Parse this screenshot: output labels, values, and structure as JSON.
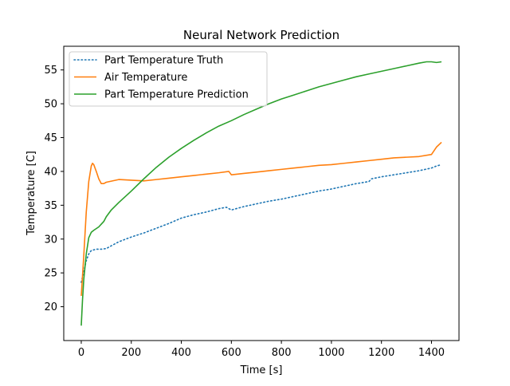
{
  "chart_data": {
    "type": "line",
    "title": "Neural Network Prediction",
    "xlabel": "Time [s]",
    "ylabel": "Temperature [C]",
    "xlim": [
      -70,
      1510
    ],
    "ylim": [
      15,
      58.5
    ],
    "xticks": [
      0,
      200,
      400,
      600,
      800,
      1000,
      1200,
      1400
    ],
    "yticks": [
      20,
      25,
      30,
      35,
      40,
      45,
      50,
      55
    ],
    "grid": false,
    "legend_position": "upper-left",
    "series": [
      {
        "name": "Part Temperature Truth",
        "color": "#1f77b4",
        "style": "dotted",
        "x": [
          0,
          10,
          20,
          30,
          40,
          60,
          80,
          100,
          150,
          200,
          250,
          300,
          350,
          400,
          450,
          500,
          550,
          580,
          600,
          650,
          700,
          750,
          800,
          850,
          900,
          950,
          1000,
          1050,
          1100,
          1150,
          1160,
          1200,
          1250,
          1300,
          1350,
          1400,
          1420,
          1440
        ],
        "y": [
          23.6,
          25.2,
          26.8,
          27.8,
          28.3,
          28.5,
          28.5,
          28.6,
          29.6,
          30.3,
          30.9,
          31.6,
          32.3,
          33.1,
          33.6,
          34.0,
          34.5,
          34.7,
          34.3,
          34.8,
          35.2,
          35.6,
          35.9,
          36.3,
          36.7,
          37.1,
          37.4,
          37.8,
          38.2,
          38.5,
          38.9,
          39.2,
          39.5,
          39.8,
          40.1,
          40.5,
          40.8,
          41.0
        ]
      },
      {
        "name": "Air Temperature",
        "color": "#ff7f0e",
        "style": "solid",
        "x": [
          0,
          10,
          20,
          30,
          40,
          45,
          50,
          60,
          70,
          80,
          90,
          100,
          150,
          200,
          250,
          300,
          350,
          400,
          450,
          500,
          550,
          590,
          600,
          650,
          700,
          750,
          800,
          850,
          900,
          950,
          1000,
          1050,
          1100,
          1150,
          1200,
          1250,
          1300,
          1350,
          1400,
          1420,
          1440
        ],
        "y": [
          21.6,
          27.5,
          34.0,
          38.5,
          40.8,
          41.2,
          41.0,
          40.0,
          38.9,
          38.2,
          38.2,
          38.4,
          38.8,
          38.7,
          38.6,
          38.8,
          39.0,
          39.2,
          39.4,
          39.6,
          39.8,
          40.0,
          39.5,
          39.7,
          39.9,
          40.1,
          40.3,
          40.5,
          40.7,
          40.9,
          41.0,
          41.2,
          41.4,
          41.6,
          41.8,
          42.0,
          42.1,
          42.2,
          42.5,
          43.6,
          44.3
        ]
      },
      {
        "name": "Part Temperature Prediction",
        "color": "#2ca02c",
        "style": "solid",
        "x": [
          0,
          5,
          10,
          20,
          30,
          40,
          50,
          70,
          90,
          100,
          120,
          150,
          200,
          250,
          300,
          350,
          400,
          450,
          500,
          550,
          600,
          650,
          700,
          750,
          800,
          850,
          900,
          950,
          1000,
          1050,
          1100,
          1150,
          1200,
          1250,
          1300,
          1350,
          1380,
          1400,
          1420,
          1440
        ],
        "y": [
          17.2,
          21.0,
          24.0,
          27.8,
          30.2,
          31.0,
          31.3,
          31.8,
          32.6,
          33.3,
          34.3,
          35.4,
          37.1,
          38.9,
          40.6,
          42.1,
          43.4,
          44.6,
          45.7,
          46.7,
          47.5,
          48.4,
          49.2,
          50.0,
          50.7,
          51.3,
          51.9,
          52.5,
          53.0,
          53.5,
          54.0,
          54.4,
          54.8,
          55.2,
          55.6,
          56.0,
          56.2,
          56.2,
          56.1,
          56.2
        ]
      }
    ]
  }
}
